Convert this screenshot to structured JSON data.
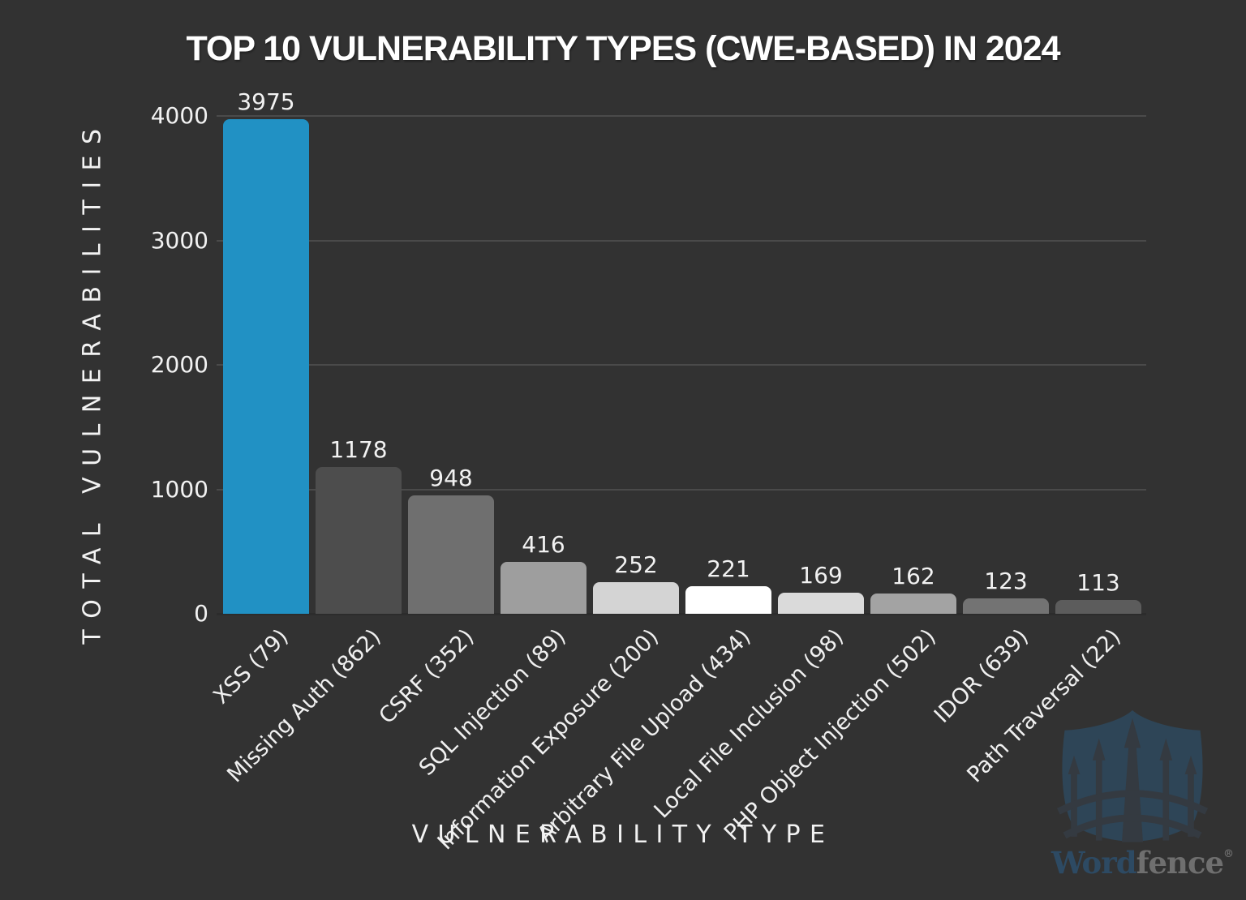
{
  "chart_data": {
    "type": "bar",
    "title": "TOP 10 VULNERABILITY TYPES (CWE-BASED) IN 2024",
    "xlabel": "VULNERABILITY TYPE",
    "ylabel": "TOTAL VULNERABILITIES",
    "categories": [
      "XSS (79)",
      "Missing Auth (862)",
      "CSRF (352)",
      "SQL Injection (89)",
      "Information Exposure (200)",
      "Arbitrary File Upload (434)",
      "Local File Inclusion (98)",
      "PHP Object Injection (502)",
      "IDOR (639)",
      "Path Traversal (22)"
    ],
    "values": [
      3975,
      1178,
      948,
      416,
      252,
      221,
      169,
      162,
      123,
      113
    ],
    "bar_colors": [
      "#2191c4",
      "#4d4d4d",
      "#6f6f6f",
      "#9e9e9e",
      "#d4d4d4",
      "#ffffff",
      "#dadada",
      "#a3a3a3",
      "#737373",
      "#5c5c5c"
    ],
    "ylim": [
      0,
      4000
    ],
    "yticks": [
      0,
      1000,
      2000,
      3000,
      4000
    ],
    "grid": "horizontal",
    "legend_position": "none",
    "value_labels": true,
    "x_tick_rotation_deg": 45
  },
  "branding": {
    "name": "Wordfence",
    "word": "Word",
    "fence": "fence",
    "registered": "®",
    "logo_icon": "wordfence-shield-icon"
  },
  "colors": {
    "background": "#323232",
    "accent_blue": "#2191c4",
    "gridline": "#4a4a4a",
    "text": "#f2f2f2",
    "logo_shield": "#2e4557",
    "logo_dark": "#343a41",
    "logo_word": "#2d4a63",
    "logo_fence": "#6f6f6f"
  }
}
